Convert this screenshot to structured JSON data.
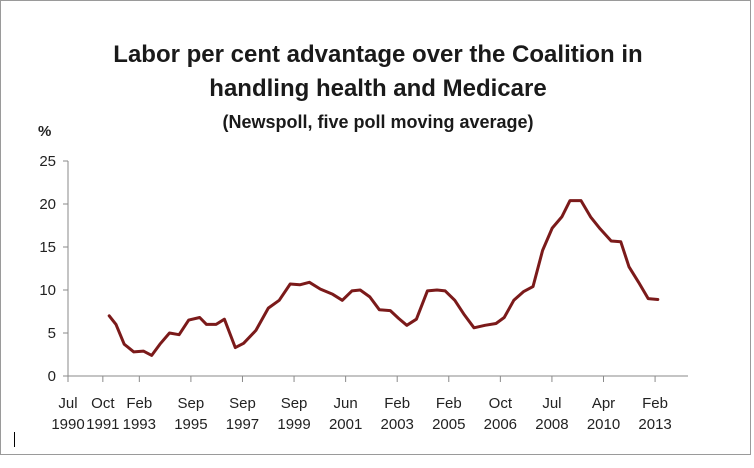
{
  "chart_data": {
    "type": "line",
    "title_line1": "Labor per cent advantage over the Coalition  in",
    "title_line2": "handling health and Medicare",
    "subtitle": "(Newspoll, five poll moving average)",
    "ylabel": "%",
    "ylim": [
      0,
      25
    ],
    "yticks": [
      0,
      5,
      10,
      15,
      20,
      25
    ],
    "xlim": [
      1990.5,
      2013.1
    ],
    "xticks": [
      {
        "x": 1990.5,
        "line1": "Jul",
        "line2": "1990"
      },
      {
        "x": 1991.77,
        "line1": "Oct",
        "line2": "1991"
      },
      {
        "x": 1993.1,
        "line1": "Feb",
        "line2": "1993"
      },
      {
        "x": 1994.98,
        "line1": "Sep",
        "line2": "1995"
      },
      {
        "x": 1996.86,
        "line1": "Sep",
        "line2": "1997"
      },
      {
        "x": 1998.74,
        "line1": "Sep",
        "line2": "1999"
      },
      {
        "x": 2000.62,
        "line1": "Jun",
        "line2": "2001"
      },
      {
        "x": 2002.5,
        "line1": "Feb",
        "line2": "2003"
      },
      {
        "x": 2004.38,
        "line1": "Feb",
        "line2": "2005"
      },
      {
        "x": 2006.26,
        "line1": "Oct",
        "line2": "2006"
      },
      {
        "x": 2008.14,
        "line1": "Jul",
        "line2": "2008"
      },
      {
        "x": 2010.02,
        "line1": "Apr",
        "line2": "2010"
      },
      {
        "x": 2011.9,
        "line1": "Feb",
        "line2": "2013"
      }
    ],
    "grid": false,
    "line_color": "#7b1a1a",
    "series": [
      {
        "x": [
          1992.0,
          1992.25,
          1992.55,
          1992.9,
          1993.25,
          1993.55,
          1993.85,
          1994.2,
          1994.55,
          1994.9,
          1995.3,
          1995.55,
          1995.9,
          1996.2,
          1996.6,
          1996.9,
          1997.35,
          1997.8,
          1998.2,
          1998.6,
          1998.95,
          1999.3,
          1999.7,
          2000.15,
          2000.5,
          2000.85,
          2001.15,
          2001.5,
          2001.85,
          2002.25,
          2002.55,
          2002.85,
          2003.2,
          2003.6,
          2003.95,
          2004.25,
          2004.6,
          2004.95,
          2005.3,
          2005.7,
          2006.1,
          2006.4,
          2006.75,
          2007.1,
          2007.45,
          2007.8,
          2008.15,
          2008.5,
          2008.8,
          2009.2,
          2009.55,
          2009.9,
          2010.3,
          2010.65,
          2010.95,
          2011.3,
          2011.65,
          2012.0
        ],
        "y": [
          7.0,
          6.0,
          3.7,
          2.8,
          2.9,
          2.4,
          3.7,
          5.0,
          4.8,
          6.5,
          6.8,
          6.0,
          6.0,
          6.6,
          3.3,
          3.8,
          5.3,
          7.9,
          8.8,
          10.7,
          10.6,
          10.9,
          10.1,
          9.5,
          8.8,
          9.9,
          10.0,
          9.2,
          7.7,
          7.6,
          6.7,
          5.9,
          6.6,
          9.9,
          10.0,
          9.9,
          8.8,
          7.1,
          5.6,
          5.9,
          6.1,
          6.8,
          8.8,
          9.8,
          10.4,
          14.6,
          17.2,
          18.5,
          20.4,
          20.4,
          18.5,
          17.1,
          15.7,
          15.6,
          12.7,
          10.9,
          9.0,
          8.9
        ]
      }
    ]
  }
}
